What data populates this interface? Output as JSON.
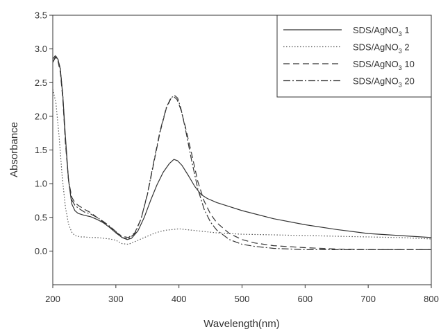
{
  "chart_data": {
    "type": "line",
    "xlabel": "Wavelength(nm)",
    "ylabel": "Absorbance",
    "xlim": [
      200,
      800
    ],
    "ylim": [
      -0.5,
      3.5
    ],
    "x_ticks": [
      200,
      300,
      400,
      500,
      600,
      700,
      800
    ],
    "y_ticks": [
      0.0,
      0.5,
      1.0,
      1.5,
      2.0,
      2.5,
      3.0,
      3.5
    ],
    "x_tick_labels": [
      "200",
      "300",
      "400",
      "500",
      "600",
      "700",
      "800"
    ],
    "y_tick_labels": [
      "0.0",
      "0.5",
      "1.0",
      "1.5",
      "2.0",
      "2.5",
      "3.0",
      "3.5"
    ],
    "grid": false,
    "legend_position": "top-right",
    "series": [
      {
        "name": "SDS/AgNO3 1",
        "legend_base": "SDS/AgNO",
        "legend_sub": "3",
        "legend_suffix": " 1",
        "style": "solid",
        "color": "#333333",
        "x": [
          200,
          204,
          208,
          212,
          216,
          220,
          225,
          230,
          235,
          240,
          250,
          260,
          270,
          280,
          290,
          300,
          310,
          318,
          325,
          335,
          345,
          355,
          365,
          375,
          385,
          392,
          398,
          405,
          415,
          425,
          435,
          445,
          460,
          480,
          500,
          550,
          600,
          650,
          700,
          750,
          800
        ],
        "y": [
          2.8,
          2.88,
          2.85,
          2.7,
          2.3,
          1.7,
          1.05,
          0.7,
          0.6,
          0.56,
          0.53,
          0.51,
          0.47,
          0.42,
          0.35,
          0.27,
          0.2,
          0.17,
          0.19,
          0.3,
          0.5,
          0.75,
          0.98,
          1.17,
          1.3,
          1.36,
          1.34,
          1.27,
          1.12,
          0.96,
          0.84,
          0.78,
          0.72,
          0.66,
          0.6,
          0.48,
          0.39,
          0.32,
          0.26,
          0.23,
          0.2
        ]
      },
      {
        "name": "SDS/AgNO3 2",
        "legend_base": "SDS/AgNO",
        "legend_sub": "3",
        "legend_suffix": " 2",
        "style": "dotted",
        "color": "#555555",
        "x": [
          200,
          205,
          210,
          215,
          220,
          225,
          230,
          235,
          240,
          245,
          250,
          260,
          270,
          280,
          290,
          300,
          310,
          320,
          330,
          340,
          350,
          360,
          370,
          380,
          390,
          400,
          410,
          420,
          440,
          460,
          480,
          500,
          550,
          600,
          650,
          700,
          750,
          800
        ],
        "y": [
          2.4,
          2.2,
          1.7,
          1.1,
          0.65,
          0.4,
          0.28,
          0.23,
          0.22,
          0.21,
          0.21,
          0.2,
          0.2,
          0.19,
          0.18,
          0.16,
          0.11,
          0.1,
          0.14,
          0.18,
          0.22,
          0.26,
          0.29,
          0.31,
          0.32,
          0.33,
          0.32,
          0.31,
          0.29,
          0.27,
          0.26,
          0.25,
          0.24,
          0.23,
          0.22,
          0.21,
          0.2,
          0.18
        ]
      },
      {
        "name": "SDS/AgNO3 10",
        "legend_base": "SDS/AgNO",
        "legend_sub": "3",
        "legend_suffix": " 10",
        "style": "dashed",
        "color": "#333333",
        "x": [
          200,
          204,
          208,
          212,
          216,
          220,
          225,
          230,
          235,
          240,
          250,
          260,
          270,
          280,
          290,
          300,
          310,
          320,
          330,
          340,
          350,
          360,
          370,
          380,
          387,
          392,
          397,
          403,
          410,
          420,
          430,
          440,
          450,
          460,
          480,
          500,
          520,
          550,
          600,
          650,
          700,
          750,
          800
        ],
        "y": [
          2.8,
          2.87,
          2.83,
          2.65,
          2.25,
          1.6,
          1.05,
          0.8,
          0.72,
          0.68,
          0.62,
          0.57,
          0.5,
          0.43,
          0.36,
          0.28,
          0.22,
          0.2,
          0.27,
          0.48,
          0.84,
          1.3,
          1.76,
          2.12,
          2.26,
          2.29,
          2.25,
          2.1,
          1.85,
          1.45,
          1.03,
          0.74,
          0.55,
          0.42,
          0.26,
          0.17,
          0.12,
          0.08,
          0.05,
          0.03,
          0.02,
          0.02,
          0.02
        ]
      },
      {
        "name": "SDS/AgNO3 20",
        "legend_base": "SDS/AgNO",
        "legend_sub": "3",
        "legend_suffix": " 20",
        "style": "dashdot",
        "color": "#333333",
        "x": [
          200,
          204,
          208,
          212,
          216,
          220,
          225,
          230,
          235,
          240,
          250,
          260,
          270,
          280,
          290,
          300,
          310,
          320,
          330,
          340,
          350,
          360,
          370,
          380,
          387,
          393,
          398,
          403,
          410,
          420,
          430,
          440,
          450,
          460,
          480,
          500,
          520,
          550,
          600,
          650,
          700,
          750,
          800
        ],
        "y": [
          2.85,
          2.9,
          2.86,
          2.7,
          2.3,
          1.65,
          1.05,
          0.76,
          0.68,
          0.64,
          0.58,
          0.55,
          0.5,
          0.44,
          0.37,
          0.29,
          0.2,
          0.18,
          0.26,
          0.48,
          0.85,
          1.32,
          1.78,
          2.13,
          2.27,
          2.31,
          2.27,
          2.12,
          1.82,
          1.35,
          0.92,
          0.62,
          0.43,
          0.31,
          0.17,
          0.1,
          0.07,
          0.04,
          0.02,
          0.02,
          0.02,
          0.02,
          0.02
        ]
      }
    ]
  }
}
